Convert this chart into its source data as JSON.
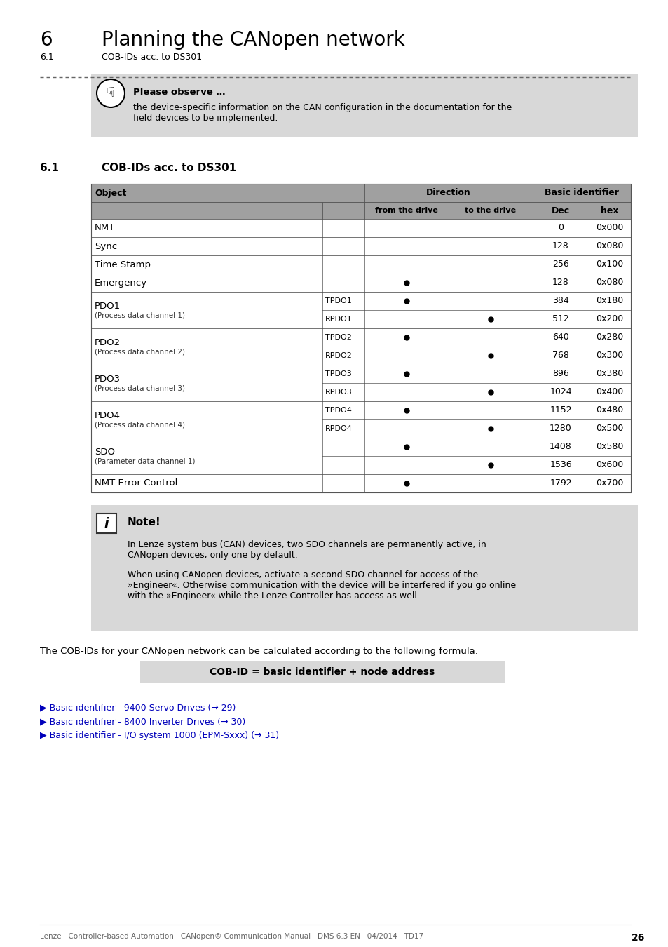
{
  "title_number": "6",
  "title_text": "Planning the CANopen network",
  "subtitle_num": "6.1",
  "subtitle_text": "COB-IDs acc. to DS301",
  "section_num": "6.1",
  "section_text": "COB-IDs acc. to DS301",
  "observe_title": "Please observe …",
  "observe_body1": "the device-specific information on the CAN configuration in the documentation for the",
  "observe_body2": "field devices to be implemented.",
  "note_title": "Note!",
  "note_body1a": "In Lenze system bus (CAN) devices, two SDO channels are permanently active, in",
  "note_body1b": "CANopen devices, only one by default.",
  "note_body2a": "When using CANopen devices, activate a second SDO channel for access of the",
  "note_body2b": "»Engineer«. Otherwise communication with the device will be interfered if you go online",
  "note_body2c": "with the »Engineer« while the Lenze Controller has access as well.",
  "formula_intro": "The COB-IDs for your CANopen network can be calculated according to the following formula:",
  "formula_label": "COB-ID = basic identifier + node address",
  "links": [
    "▶ Basic identifier - 9400 Servo Drives (→ 29)",
    "▶ Basic identifier - 8400 Inverter Drives (→ 30)",
    "▶ Basic identifier - I/O system 1000 (EPM-Sxxx) (→ 31)"
  ],
  "footer": "Lenze · Controller-based Automation · CANopen® Communication Manual · DMS 6.3 EN · 04/2014 · TD17",
  "page_number": "26",
  "bg_color": "#ffffff",
  "gray_bg": "#d4d4d4",
  "table_header_bg": "#a0a0a0",
  "table_rows": [
    {
      "object": "NMT",
      "sub": "",
      "obj_small": "",
      "from_drive": false,
      "to_drive": false,
      "dec": "0",
      "hex": "0x000"
    },
    {
      "object": "Sync",
      "sub": "",
      "obj_small": "",
      "from_drive": false,
      "to_drive": false,
      "dec": "128",
      "hex": "0x080"
    },
    {
      "object": "Time Stamp",
      "sub": "",
      "obj_small": "",
      "from_drive": false,
      "to_drive": false,
      "dec": "256",
      "hex": "0x100"
    },
    {
      "object": "Emergency",
      "sub": "",
      "obj_small": "",
      "from_drive": true,
      "to_drive": false,
      "dec": "128",
      "hex": "0x080"
    },
    {
      "object": "PDO1",
      "sub": "TPDO1",
      "obj_small": "(Process data channel 1)",
      "from_drive": true,
      "to_drive": false,
      "dec": "384",
      "hex": "0x180"
    },
    {
      "object": "",
      "sub": "RPDO1",
      "obj_small": "",
      "from_drive": false,
      "to_drive": true,
      "dec": "512",
      "hex": "0x200"
    },
    {
      "object": "PDO2",
      "sub": "TPDO2",
      "obj_small": "(Process data channel 2)",
      "from_drive": true,
      "to_drive": false,
      "dec": "640",
      "hex": "0x280"
    },
    {
      "object": "",
      "sub": "RPDO2",
      "obj_small": "",
      "from_drive": false,
      "to_drive": true,
      "dec": "768",
      "hex": "0x300"
    },
    {
      "object": "PDO3",
      "sub": "TPDO3",
      "obj_small": "(Process data channel 3)",
      "from_drive": true,
      "to_drive": false,
      "dec": "896",
      "hex": "0x380"
    },
    {
      "object": "",
      "sub": "RPDO3",
      "obj_small": "",
      "from_drive": false,
      "to_drive": true,
      "dec": "1024",
      "hex": "0x400"
    },
    {
      "object": "PDO4",
      "sub": "TPDO4",
      "obj_small": "(Process data channel 4)",
      "from_drive": true,
      "to_drive": false,
      "dec": "1152",
      "hex": "0x480"
    },
    {
      "object": "",
      "sub": "RPDO4",
      "obj_small": "",
      "from_drive": false,
      "to_drive": true,
      "dec": "1280",
      "hex": "0x500"
    },
    {
      "object": "SDO",
      "sub": "",
      "obj_small": "(Parameter data channel 1)",
      "from_drive": true,
      "to_drive": false,
      "dec": "1408",
      "hex": "0x580"
    },
    {
      "object": "",
      "sub": "",
      "obj_small": "",
      "from_drive": false,
      "to_drive": true,
      "dec": "1536",
      "hex": "0x600"
    },
    {
      "object": "NMT Error Control",
      "sub": "",
      "obj_small": "",
      "from_drive": true,
      "to_drive": false,
      "dec": "1792",
      "hex": "0x700"
    }
  ],
  "groups": [
    {
      "name": "NMT",
      "small": "",
      "rows": [
        0
      ]
    },
    {
      "name": "Sync",
      "small": "",
      "rows": [
        1
      ]
    },
    {
      "name": "Time Stamp",
      "small": "",
      "rows": [
        2
      ]
    },
    {
      "name": "Emergency",
      "small": "",
      "rows": [
        3
      ]
    },
    {
      "name": "PDO1",
      "small": "(Process data channel 1)",
      "rows": [
        4,
        5
      ]
    },
    {
      "name": "PDO2",
      "small": "(Process data channel 2)",
      "rows": [
        6,
        7
      ]
    },
    {
      "name": "PDO3",
      "small": "(Process data channel 3)",
      "rows": [
        8,
        9
      ]
    },
    {
      "name": "PDO4",
      "small": "(Process data channel 4)",
      "rows": [
        10,
        11
      ]
    },
    {
      "name": "SDO",
      "small": "(Parameter data channel 1)",
      "rows": [
        12,
        13
      ]
    },
    {
      "name": "NMT Error Control",
      "small": "",
      "rows": [
        14
      ]
    }
  ]
}
